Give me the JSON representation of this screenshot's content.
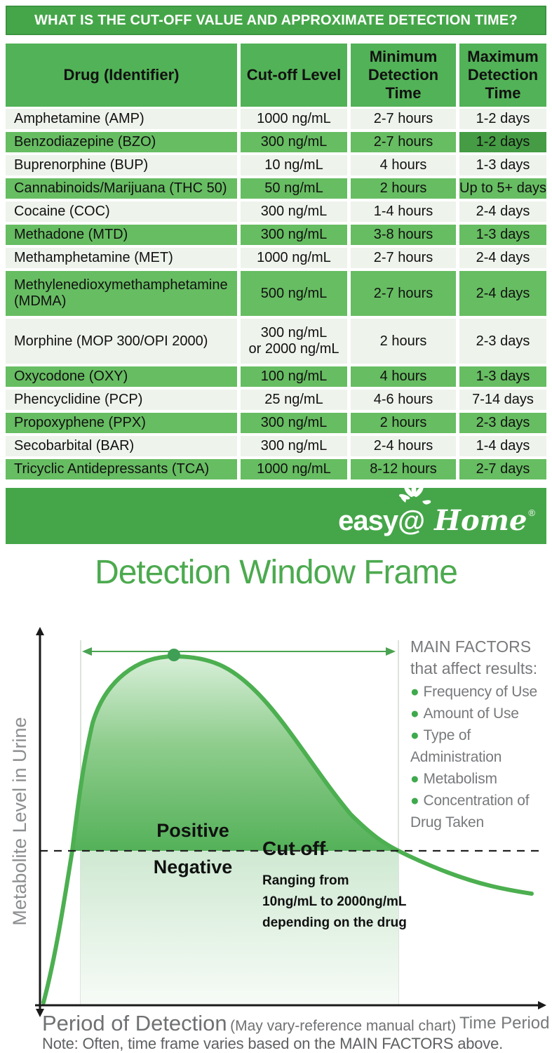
{
  "title_bar": {
    "text": "WHAT IS THE CUT-OFF VALUE AND APPROXIMATE DETECTION TIME?"
  },
  "table": {
    "columns": [
      "Drug (Identifier)",
      "Cut-off Level",
      "Minimum Detection Time",
      "Maximum Detection Time"
    ],
    "rows": [
      {
        "drug": "Amphetamine (AMP)",
        "cutoff": "1000 ng/mL",
        "min": "2-7 hours",
        "max": "1-2 days",
        "shade": "light"
      },
      {
        "drug": "Benzodiazepine (BZO)",
        "cutoff": "300 ng/mL",
        "min": "2-7 hours",
        "max": "1-2 days",
        "shade": "green",
        "max_dark": true
      },
      {
        "drug": "Buprenorphine (BUP)",
        "cutoff": "10 ng/mL",
        "min": "4 hours",
        "max": "1-3 days",
        "shade": "light"
      },
      {
        "drug": "Cannabinoids/Marijuana (THC 50)",
        "cutoff": "50 ng/mL",
        "min": "2 hours",
        "max": "Up to 5+ days",
        "shade": "green"
      },
      {
        "drug": "Cocaine (COC)",
        "cutoff": "300 ng/mL",
        "min": "1-4 hours",
        "max": "2-4 days",
        "shade": "light"
      },
      {
        "drug": "Methadone (MTD)",
        "cutoff": "300 ng/mL",
        "min": "3-8 hours",
        "max": "1-3 days",
        "shade": "green"
      },
      {
        "drug": "Methamphetamine (MET)",
        "cutoff": "1000 ng/mL",
        "min": "2-7 hours",
        "max": "2-4 days",
        "shade": "light"
      },
      {
        "drug": "Methylenedioxymethamphetamine (MDMA)",
        "cutoff": "500 ng/mL",
        "min": "2-7 hours",
        "max": "2-4 days",
        "shade": "green",
        "tall": true
      },
      {
        "drug": "Morphine (MOP 300/OPI 2000)",
        "cutoff": "300 ng/mL\nor 2000 ng/mL",
        "min": "2 hours",
        "max": "2-3 days",
        "shade": "light",
        "tall": true
      },
      {
        "drug": "Oxycodone (OXY)",
        "cutoff": "100 ng/mL",
        "min": "4 hours",
        "max": "1-3 days",
        "shade": "green"
      },
      {
        "drug": "Phencyclidine (PCP)",
        "cutoff": "25 ng/mL",
        "min": "4-6 hours",
        "max": "7-14 days",
        "shade": "light"
      },
      {
        "drug": "Propoxyphene (PPX)",
        "cutoff": "300 ng/mL",
        "min": "2 hours",
        "max": "2-3 days",
        "shade": "green"
      },
      {
        "drug": "Secobarbital (BAR)",
        "cutoff": "300 ng/mL",
        "min": "2-4 hours",
        "max": "1-4 days",
        "shade": "light"
      },
      {
        "drug": "Tricyclic Antidepressants (TCA)",
        "cutoff": "1000 ng/mL",
        "min": "8-12 hours",
        "max": "2-7 days",
        "shade": "green"
      }
    ]
  },
  "footer": {
    "logo": {
      "easy": "easy@",
      "home": "Home",
      "registered": "®"
    }
  },
  "section_title": "Detection Window Frame",
  "chart": {
    "ylabel": "Metabolite Level in Urine",
    "positive_label": "Positive",
    "negative_label": "Negative",
    "cutoff_label": "Cut off",
    "cutoff_note": "Ranging from\n10ng/mL to 2000ng/mL\ndepending on the drug",
    "factors_heading": "MAIN FACTORS that affect results:",
    "factors": [
      "Frequency of Use",
      "Amount of Use",
      "Type of Administration",
      "Metabolism",
      "Concentration of Drug Taken"
    ],
    "x_caption": "Period of Detection",
    "x_caption_sub": "(May vary-reference manual chart)",
    "x_right_label": "Time Period",
    "note": "Note: Often, time frame varies based on the MAIN FACTORS above."
  },
  "colors": {
    "brand_green": "#45a649",
    "header_green": "#52b257",
    "row_green": "#67bd62",
    "row_green_dark": "#459c44",
    "row_light": "#eef3ec",
    "curve_green": "#4caf50",
    "heading_green": "#4caa4f",
    "text_gray": "#77797b"
  },
  "chart_data": [
    {
      "type": "table",
      "title": "WHAT IS THE CUT-OFF VALUE AND APPROXIMATE DETECTION TIME?",
      "columns": [
        "Drug (Identifier)",
        "Cut-off Level",
        "Minimum Detection Time",
        "Maximum Detection Time"
      ],
      "rows": [
        [
          "Amphetamine (AMP)",
          "1000 ng/mL",
          "2-7 hours",
          "1-2 days"
        ],
        [
          "Benzodiazepine (BZO)",
          "300 ng/mL",
          "2-7 hours",
          "1-2 days"
        ],
        [
          "Buprenorphine (BUP)",
          "10 ng/mL",
          "4 hours",
          "1-3 days"
        ],
        [
          "Cannabinoids/Marijuana (THC 50)",
          "50 ng/mL",
          "2 hours",
          "Up to 5+ days"
        ],
        [
          "Cocaine (COC)",
          "300 ng/mL",
          "1-4 hours",
          "2-4 days"
        ],
        [
          "Methadone (MTD)",
          "300 ng/mL",
          "3-8 hours",
          "1-3 days"
        ],
        [
          "Methamphetamine (MET)",
          "1000 ng/mL",
          "2-7 hours",
          "2-4 days"
        ],
        [
          "Methylenedioxymethamphetamine (MDMA)",
          "500 ng/mL",
          "2-7 hours",
          "2-4 days"
        ],
        [
          "Morphine (MOP 300/OPI 2000)",
          "300 ng/mL or 2000 ng/mL",
          "2 hours",
          "2-3 days"
        ],
        [
          "Oxycodone (OXY)",
          "100 ng/mL",
          "4 hours",
          "1-3 days"
        ],
        [
          "Phencyclidine (PCP)",
          "25 ng/mL",
          "4-6 hours",
          "7-14 days"
        ],
        [
          "Propoxyphene (PPX)",
          "300 ng/mL",
          "2 hours",
          "2-3 days"
        ],
        [
          "Secobarbital (BAR)",
          "300 ng/mL",
          "2-4 hours",
          "1-4 days"
        ],
        [
          "Tricyclic Antidepressants (TCA)",
          "1000 ng/mL",
          "8-12 hours",
          "2-7 days"
        ]
      ]
    },
    {
      "type": "area",
      "title": "Detection Window Frame",
      "xlabel": "Time Period",
      "ylabel": "Metabolite Level in Urine",
      "x_range": [
        0,
        1
      ],
      "y_range": [
        0,
        1
      ],
      "grid": false,
      "curve_points_normalized": [
        {
          "x": 0.007,
          "y": 0.01
        },
        {
          "x": 0.065,
          "y": 0.44
        },
        {
          "x": 0.105,
          "y": 0.8
        },
        {
          "x": 0.27,
          "y": 0.99
        },
        {
          "x": 0.43,
          "y": 0.89
        },
        {
          "x": 0.62,
          "y": 0.54
        },
        {
          "x": 0.72,
          "y": 0.44
        },
        {
          "x": 0.9,
          "y": 0.34
        },
        {
          "x": 0.985,
          "y": 0.32
        }
      ],
      "cutoff_line_y_normalized": 0.44,
      "detection_window_x_normalized": [
        0.082,
        0.72
      ],
      "annotations": [
        "Positive (above cut-off)",
        "Negative (below cut-off)",
        "Cut off: Ranging from 10ng/mL to 2000ng/mL depending on the drug"
      ],
      "legend_position": "right",
      "legend_text": [
        "MAIN FACTORS that affect results:",
        "Frequency of Use",
        "Amount of Use",
        "Type of Administration",
        "Metabolism",
        "Concentration of Drug Taken"
      ]
    }
  ]
}
